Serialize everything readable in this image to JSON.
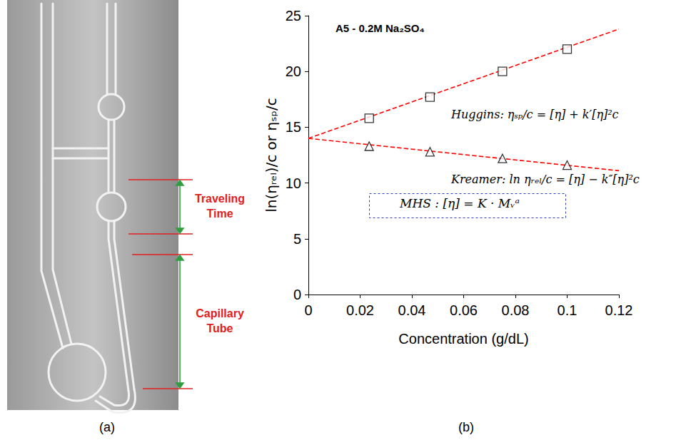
{
  "diagram": {
    "panel_label": "(a)",
    "annotations": [
      "Traveling Time",
      "Capillary Tube"
    ]
  },
  "chart_data": {
    "type": "scatter",
    "title": "A5 - 0.2M Na₂SO₄",
    "x_label": "Concentration (g/dL)",
    "y_label": "ln(ηᵣₑₗ)/c or ηₛₚ/c",
    "xlim": [
      0,
      0.12
    ],
    "xticks": [
      0,
      0.02,
      0.04,
      0.06,
      0.08,
      0.1,
      0.12
    ],
    "ylim": [
      0,
      25
    ],
    "yticks": [
      0,
      5,
      10,
      15,
      20,
      25
    ],
    "grid": false,
    "series": [
      {
        "type": "line",
        "color": "#ff0000",
        "line_style": "dashed",
        "marker": "none",
        "x": [
          0,
          0.12
        ],
        "values": [
          14.0,
          23.8
        ]
      },
      {
        "type": "line",
        "color": "#ff0000",
        "line_style": "dashed",
        "marker": "none",
        "x": [
          0,
          0.12
        ],
        "values": [
          14.0,
          11.1
        ]
      },
      {
        "type": "scatter",
        "color": "#000000",
        "marker": "square",
        "x": [
          0.0235,
          0.047,
          0.075,
          0.1
        ],
        "values": [
          15.8,
          17.7,
          20.0,
          22.0
        ]
      },
      {
        "type": "scatter",
        "color": "#000000",
        "marker": "triangle",
        "x": [
          0.0235,
          0.047,
          0.075,
          0.1
        ],
        "values": [
          13.3,
          12.8,
          12.2,
          11.6
        ]
      }
    ],
    "annotations": [
      "Huggins: ηₛₚ/c = [η] + k′[η]²c",
      "Kreamer: ln ηᵣₑₗ/c = [η] − k″[η]²c",
      "MHS : [η] = K · Mᵥᵃ"
    ],
    "panel_label": "(b)"
  }
}
